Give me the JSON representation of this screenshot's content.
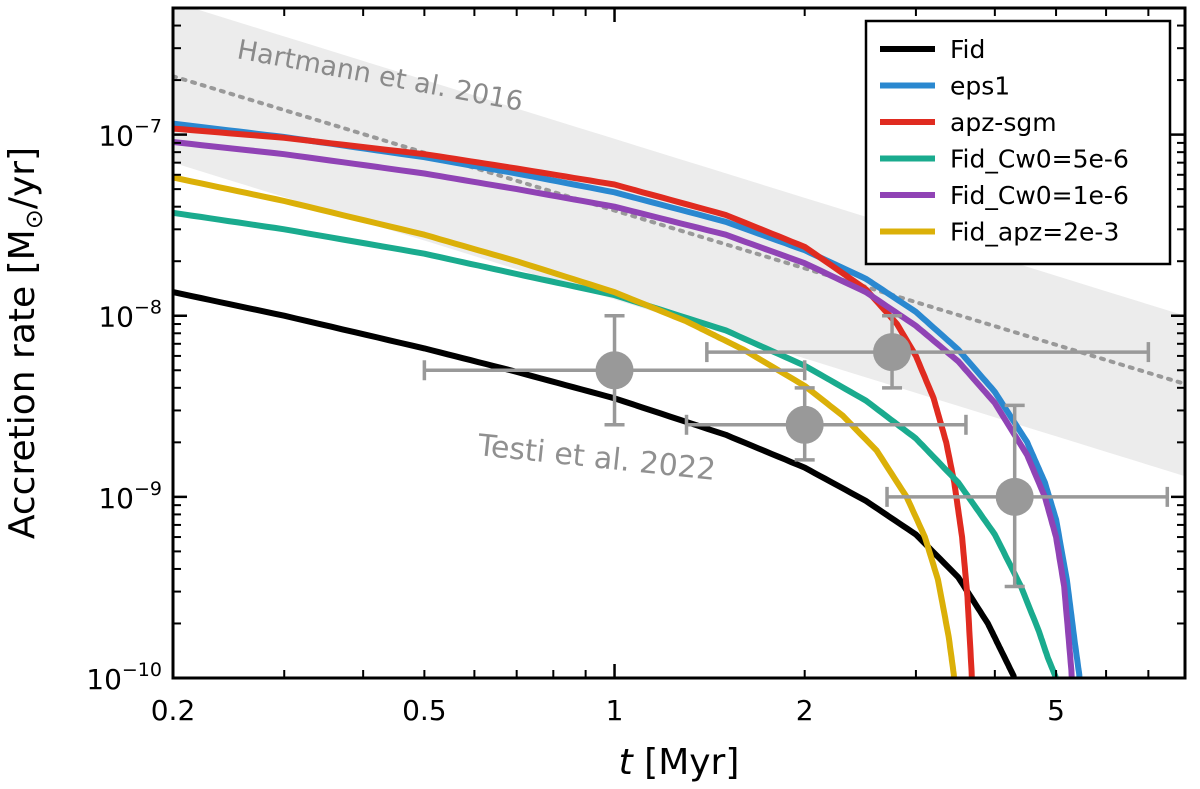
{
  "chart_data": {
    "type": "line",
    "title": "",
    "xlabel_var": "t",
    "xlabel_unit": " [Myr]",
    "ylabel_main": "Accretion rate [M",
    "ylabel_sub": "⊙",
    "ylabel_end": "/yr]",
    "xscale": "log",
    "yscale": "log",
    "xlim": [
      0.2,
      8
    ],
    "ylim": [
      1e-10,
      5e-07
    ],
    "xticks": [
      {
        "value": 0.2,
        "label": "0.2"
      },
      {
        "value": 0.5,
        "label": "0.5"
      },
      {
        "value": 1,
        "label": "1"
      },
      {
        "value": 2,
        "label": "2"
      },
      {
        "value": 5,
        "label": "5"
      }
    ],
    "yticks": [
      {
        "value": 1e-07,
        "base": "10",
        "exp": "−7"
      },
      {
        "value": 1e-08,
        "base": "10",
        "exp": "−8"
      },
      {
        "value": 1e-09,
        "base": "10",
        "exp": "−9"
      },
      {
        "value": 1e-10,
        "base": "10",
        "exp": "−10"
      }
    ],
    "legend_position": "top-right",
    "series": [
      {
        "name": "Fid",
        "color": "#000000",
        "x": [
          0.2,
          0.3,
          0.5,
          0.7,
          1.0,
          1.5,
          2.0,
          2.5,
          3.0,
          3.5,
          3.9,
          4.1,
          4.3
        ],
        "y": [
          1.35e-08,
          1e-08,
          6.6e-09,
          4.9e-09,
          3.5e-09,
          2.2e-09,
          1.45e-09,
          9.5e-10,
          6.2e-10,
          3.6e-10,
          2e-10,
          1.4e-10,
          1e-10
        ]
      },
      {
        "name": "eps1",
        "color": "#2a88d0",
        "x": [
          0.2,
          0.3,
          0.5,
          0.7,
          1.0,
          1.5,
          2.0,
          2.5,
          3.0,
          3.5,
          4.0,
          4.5,
          4.8,
          5.0,
          5.2,
          5.35,
          5.45
        ],
        "y": [
          1.15e-07,
          9.7e-08,
          7.5e-08,
          6.1e-08,
          4.8e-08,
          3.3e-08,
          2.3e-08,
          1.6e-08,
          1.05e-08,
          6.5e-09,
          3.8e-09,
          2e-09,
          1.2e-09,
          7.5e-10,
          3.5e-10,
          1.6e-10,
          1e-10
        ]
      },
      {
        "name": "apz-sgm",
        "color": "#e02b20",
        "x": [
          0.2,
          0.3,
          0.5,
          0.7,
          1.0,
          1.5,
          2.0,
          2.5,
          2.8,
          3.0,
          3.2,
          3.35,
          3.45,
          3.55,
          3.62,
          3.68
        ],
        "y": [
          1.08e-07,
          9.6e-08,
          7.8e-08,
          6.5e-08,
          5.3e-08,
          3.6e-08,
          2.4e-08,
          1.4e-08,
          9e-09,
          6e-09,
          3.5e-09,
          2e-09,
          1.2e-09,
          6e-10,
          2.8e-10,
          1e-10
        ]
      },
      {
        "name": "Fid_Cw0=5e-6",
        "color": "#1aab8e",
        "x": [
          0.2,
          0.3,
          0.5,
          0.7,
          1.0,
          1.5,
          2.0,
          2.5,
          3.0,
          3.5,
          4.0,
          4.4,
          4.7,
          4.85,
          5.0
        ],
        "y": [
          3.7e-08,
          3e-08,
          2.2e-08,
          1.7e-08,
          1.3e-08,
          8.3e-09,
          5.3e-09,
          3.4e-09,
          2.1e-09,
          1.2e-09,
          6.2e-10,
          3.2e-10,
          1.8e-10,
          1.3e-10,
          1e-10
        ]
      },
      {
        "name": "Fid_Cw0=1e-6",
        "color": "#9043b5",
        "x": [
          0.2,
          0.3,
          0.5,
          0.7,
          1.0,
          1.5,
          2.0,
          2.5,
          3.0,
          3.5,
          4.0,
          4.5,
          4.8,
          5.0,
          5.15,
          5.3
        ],
        "y": [
          9.1e-08,
          7.8e-08,
          6.1e-08,
          5e-08,
          4e-08,
          2.8e-08,
          1.95e-08,
          1.35e-08,
          8.8e-09,
          5.6e-09,
          3.3e-09,
          1.7e-09,
          1e-09,
          6e-10,
          3.2e-10,
          1e-10
        ]
      },
      {
        "name": "Fid_apz=2e-3",
        "color": "#dbb008",
        "x": [
          0.2,
          0.3,
          0.5,
          0.7,
          1.0,
          1.3,
          1.6,
          2.0,
          2.3,
          2.6,
          2.9,
          3.1,
          3.25,
          3.38,
          3.45
        ],
        "y": [
          5.8e-08,
          4.3e-08,
          2.8e-08,
          2e-08,
          1.35e-08,
          9.3e-09,
          6.5e-09,
          4.1e-09,
          2.8e-09,
          1.8e-09,
          1e-09,
          6e-10,
          3.5e-10,
          1.7e-10,
          1e-10
        ]
      }
    ],
    "reference_line": {
      "label": "Hartmann et al. 2016",
      "color": "#999999",
      "x": [
        0.2,
        8
      ],
      "y": [
        2.1e-07,
        4.2e-09
      ]
    },
    "band": {
      "label": "Testi et al. 2022",
      "color": "#ececec",
      "x": [
        0.2,
        8
      ],
      "y_upper": [
        5.4e-07,
        1e-08
      ],
      "y_lower": [
        7e-08,
        1.3e-09
      ]
    },
    "observations": {
      "color": "#999999",
      "points": [
        {
          "x": 1.0,
          "y": 5e-09,
          "x_lo": 0.5,
          "x_hi": 2.0,
          "y_lo": 2.5e-09,
          "y_hi": 1e-08
        },
        {
          "x": 2.0,
          "y": 2.5e-09,
          "x_lo": 1.3,
          "x_hi": 3.6,
          "y_lo": 1.6e-09,
          "y_hi": 4e-09
        },
        {
          "x": 2.75,
          "y": 6.3e-09,
          "x_lo": 1.4,
          "x_hi": 7.0,
          "y_lo": 4e-09,
          "y_hi": 1e-08
        },
        {
          "x": 4.3,
          "y": 1e-09,
          "x_lo": 2.7,
          "x_hi": 7.5,
          "y_lo": 3.2e-10,
          "y_hi": 3.2e-09
        }
      ]
    }
  }
}
